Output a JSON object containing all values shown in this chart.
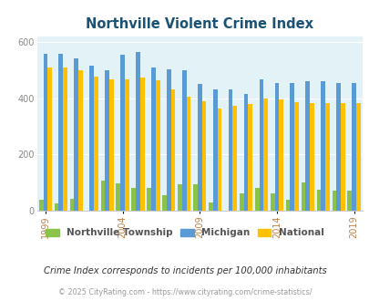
{
  "title": "Northville Violent Crime Index",
  "subtitle": "Crime Index corresponds to incidents per 100,000 inhabitants",
  "footer": "© 2025 CityRating.com - https://www.cityrating.com/crime-statistics/",
  "years": [
    1999,
    2000,
    2001,
    2002,
    2003,
    2004,
    2005,
    2006,
    2007,
    2008,
    2009,
    2010,
    2011,
    2012,
    2013,
    2014,
    2015,
    2016,
    2017,
    2018,
    2019
  ],
  "northville": [
    38,
    25,
    42,
    0,
    108,
    98,
    80,
    80,
    55,
    95,
    95,
    28,
    0,
    60,
    80,
    60,
    40,
    100,
    75,
    70,
    70
  ],
  "michigan": [
    558,
    558,
    540,
    515,
    498,
    555,
    565,
    510,
    502,
    500,
    450,
    430,
    430,
    415,
    465,
    455,
    455,
    460,
    460,
    455,
    455
  ],
  "national": [
    507,
    507,
    500,
    475,
    465,
    465,
    473,
    462,
    430,
    405,
    390,
    362,
    374,
    380,
    400,
    396,
    384,
    383,
    383,
    383,
    383
  ],
  "bar_color_northville": "#8bc34a",
  "bar_color_michigan": "#5b9bd5",
  "bar_color_national": "#ffc000",
  "background_color": "#e3f2f7",
  "title_color": "#1a5276",
  "legend_text_color": "#555555",
  "subtitle_color": "#333333",
  "footer_color": "#999999",
  "ylim": [
    0,
    620
  ],
  "yticks": [
    0,
    200,
    400,
    600
  ],
  "grid_color": "#ffffff",
  "xtick_years": [
    1999,
    2004,
    2009,
    2014,
    2019
  ]
}
